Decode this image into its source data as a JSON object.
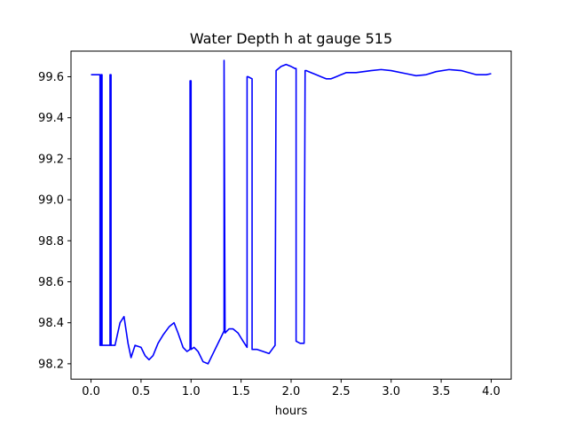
{
  "chart_data": {
    "type": "line",
    "title": "Water Depth h at gauge 515",
    "xlabel": "hours",
    "ylabel": "",
    "xlim": [
      -0.2,
      4.2
    ],
    "ylim": [
      98.125,
      99.725
    ],
    "grid": false,
    "x_ticks": [
      0.0,
      0.5,
      1.0,
      1.5,
      2.0,
      2.5,
      3.0,
      3.5,
      4.0
    ],
    "x_tick_labels": [
      "0.0",
      "0.5",
      "1.0",
      "1.5",
      "2.0",
      "2.5",
      "3.0",
      "3.5",
      "4.0"
    ],
    "y_ticks": [
      98.2,
      98.4,
      98.6,
      98.8,
      99.0,
      99.2,
      99.4,
      99.6
    ],
    "y_tick_labels": [
      "98.2",
      "98.4",
      "98.6",
      "98.8",
      "99.0",
      "99.2",
      "99.4",
      "99.6"
    ],
    "series": [
      {
        "color": "#0000ff",
        "x": [
          0.0,
          0.08,
          0.09,
          0.09,
          0.1,
          0.1,
          0.11,
          0.11,
          0.15,
          0.19,
          0.19,
          0.2,
          0.2,
          0.24,
          0.29,
          0.33,
          0.37,
          0.4,
          0.44,
          0.5,
          0.54,
          0.58,
          0.62,
          0.67,
          0.72,
          0.78,
          0.83,
          0.87,
          0.92,
          0.96,
          0.99,
          0.99,
          1.0,
          1.0,
          1.03,
          1.07,
          1.12,
          1.17,
          1.22,
          1.27,
          1.31,
          1.32,
          1.33,
          1.33,
          1.34,
          1.38,
          1.42,
          1.47,
          1.52,
          1.56,
          1.56,
          1.57,
          1.57,
          1.61,
          1.61,
          1.62,
          1.62,
          1.66,
          1.72,
          1.78,
          1.84,
          1.84,
          1.85,
          1.85,
          1.9,
          1.95,
          2.0,
          2.04,
          2.05,
          2.05,
          2.09,
          2.13,
          2.14,
          2.15,
          2.2,
          2.25,
          2.3,
          2.35,
          2.4,
          2.45,
          2.5,
          2.55,
          2.65,
          2.8,
          2.9,
          3.0,
          3.15,
          3.25,
          3.35,
          3.45,
          3.58,
          3.7,
          3.85,
          3.95,
          4.0
        ],
        "y": [
          99.61,
          99.61,
          99.61,
          98.29,
          98.29,
          99.61,
          99.61,
          98.29,
          98.29,
          98.29,
          99.61,
          99.61,
          98.29,
          98.29,
          98.4,
          98.43,
          98.3,
          98.23,
          98.29,
          98.28,
          98.24,
          98.22,
          98.24,
          98.3,
          98.34,
          98.38,
          98.4,
          98.35,
          98.28,
          98.26,
          98.27,
          99.58,
          99.58,
          98.27,
          98.28,
          98.26,
          98.21,
          98.2,
          98.25,
          98.3,
          98.34,
          98.35,
          98.36,
          99.68,
          98.35,
          98.37,
          98.37,
          98.35,
          98.31,
          98.28,
          99.6,
          99.6,
          99.6,
          99.59,
          98.27,
          98.27,
          98.27,
          98.27,
          98.26,
          98.25,
          98.29,
          98.3,
          99.63,
          99.63,
          99.65,
          99.66,
          99.65,
          99.64,
          99.64,
          98.31,
          98.3,
          98.3,
          99.63,
          99.63,
          99.62,
          99.61,
          99.6,
          99.59,
          99.59,
          99.6,
          99.61,
          99.62,
          99.62,
          99.63,
          99.635,
          99.63,
          99.615,
          99.605,
          99.61,
          99.625,
          99.635,
          99.63,
          99.61,
          99.61,
          99.615
        ]
      }
    ]
  }
}
